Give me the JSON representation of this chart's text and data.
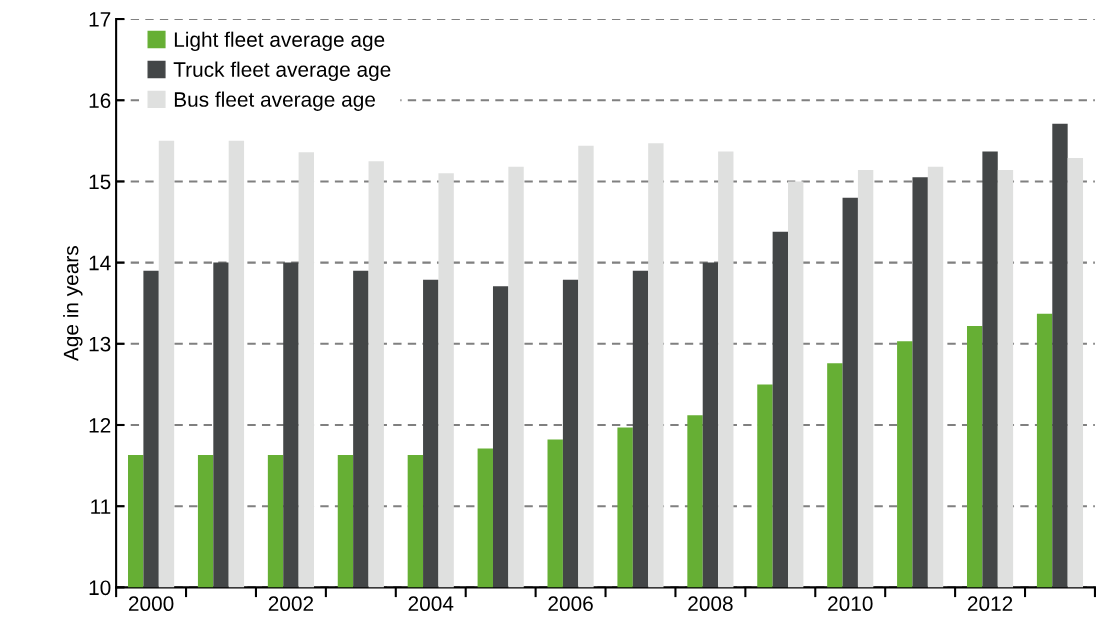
{
  "chart_data": {
    "type": "bar",
    "ylabel": "Age in years",
    "categories": [
      "2000",
      null,
      "2002",
      null,
      "2004",
      null,
      "2006",
      null,
      "2008",
      null,
      "2010",
      null,
      "2012",
      null
    ],
    "series": [
      {
        "name": "Light fleet average age",
        "color": "#66af34",
        "values": [
          11.63,
          11.63,
          11.63,
          11.63,
          11.63,
          11.71,
          11.82,
          11.97,
          12.12,
          12.5,
          12.76,
          13.03,
          13.22,
          13.37
        ]
      },
      {
        "name": "Truck fleet average age",
        "color": "#434647",
        "values": [
          13.9,
          14.0,
          14.0,
          13.9,
          13.79,
          13.71,
          13.79,
          13.9,
          14.0,
          14.38,
          14.8,
          15.05,
          15.37,
          15.71
        ]
      },
      {
        "name": "Bus fleet average age",
        "color": "#dfe0df",
        "values": [
          15.5,
          15.5,
          15.36,
          15.25,
          15.1,
          15.18,
          15.44,
          15.47,
          15.37,
          15.0,
          15.14,
          15.18,
          15.14,
          15.29
        ]
      }
    ],
    "ylim": [
      10,
      17
    ],
    "yticks": [
      10,
      11,
      12,
      13,
      14,
      15,
      16,
      17
    ],
    "grid": "y",
    "legend": "top left"
  }
}
